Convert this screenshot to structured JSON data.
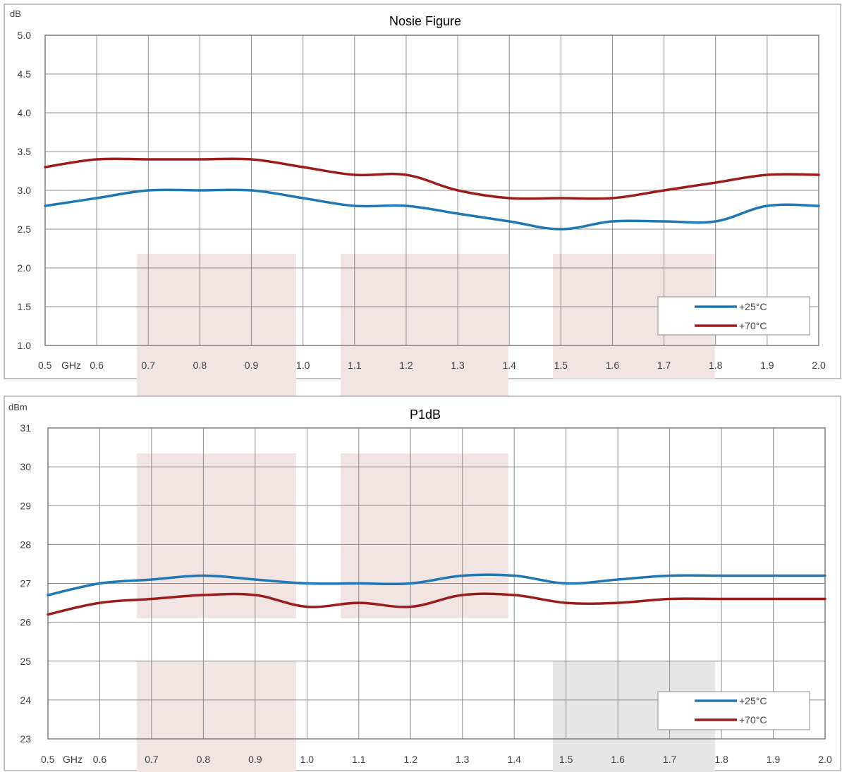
{
  "chart_data": [
    {
      "type": "line",
      "title": "Nosie Figure",
      "unit_label": "dB",
      "x_unit_label": "GHz",
      "x": [
        0.5,
        0.6,
        0.7,
        0.8,
        0.9,
        1.0,
        1.1,
        1.2,
        1.3,
        1.4,
        1.5,
        1.6,
        1.7,
        1.8,
        1.9,
        2.0
      ],
      "x_tick_labels": [
        "0.5",
        "0.6",
        "0.7",
        "0.8",
        "0.9",
        "1.0",
        "1.1",
        "1.2",
        "1.3",
        "1.4",
        "1.5",
        "1.6",
        "1.7",
        "1.8",
        "1.9",
        "2.0"
      ],
      "ylim": [
        1.0,
        5.0
      ],
      "y_ticks": [
        "1.0",
        "1.5",
        "2.0",
        "2.5",
        "3.0",
        "3.5",
        "4.0",
        "4.5",
        "5.0"
      ],
      "y_tick_values": [
        1.0,
        1.5,
        2.0,
        2.5,
        3.0,
        3.5,
        4.0,
        4.5,
        5.0
      ],
      "grid": true,
      "legend_position": "bottom-right",
      "series": [
        {
          "name": "+25°C",
          "color": "#1f77b4",
          "values": [
            2.8,
            2.9,
            3.0,
            3.0,
            3.0,
            2.9,
            2.8,
            2.8,
            2.7,
            2.6,
            2.5,
            2.6,
            2.6,
            2.6,
            2.8,
            2.8
          ]
        },
        {
          "name": "+70°C",
          "color": "#9b1c1c",
          "values": [
            3.3,
            3.4,
            3.4,
            3.4,
            3.4,
            3.3,
            3.2,
            3.2,
            3.0,
            2.9,
            2.9,
            2.9,
            3.0,
            3.1,
            3.2,
            3.2
          ]
        }
      ]
    },
    {
      "type": "line",
      "title": "P1dB",
      "unit_label": "dBm",
      "x_unit_label": "GHz",
      "x": [
        0.5,
        0.6,
        0.7,
        0.8,
        0.9,
        1.0,
        1.1,
        1.2,
        1.3,
        1.4,
        1.5,
        1.6,
        1.7,
        1.8,
        1.9,
        2.0
      ],
      "x_tick_labels": [
        "0.5",
        "0.6",
        "0.7",
        "0.8",
        "0.9",
        "1.0",
        "1.1",
        "1.2",
        "1.3",
        "1.4",
        "1.5",
        "1.6",
        "1.7",
        "1.8",
        "1.9",
        "2.0"
      ],
      "ylim": [
        23,
        31
      ],
      "y_ticks": [
        "23",
        "24",
        "25",
        "26",
        "27",
        "28",
        "29",
        "30",
        "31"
      ],
      "y_tick_values": [
        23,
        24,
        25,
        26,
        27,
        28,
        29,
        30,
        31
      ],
      "grid": true,
      "legend_position": "bottom-right",
      "series": [
        {
          "name": "+25°C",
          "color": "#1f77b4",
          "values": [
            26.7,
            27.0,
            27.1,
            27.2,
            27.1,
            27.0,
            27.0,
            27.0,
            27.2,
            27.2,
            27.0,
            27.1,
            27.2,
            27.2,
            27.2,
            27.2
          ]
        },
        {
          "name": "+70°C",
          "color": "#9b1c1c",
          "values": [
            26.2,
            26.5,
            26.6,
            26.7,
            26.7,
            26.4,
            26.5,
            26.4,
            26.7,
            26.7,
            26.5,
            26.5,
            26.6,
            26.6,
            26.6,
            26.6
          ]
        }
      ]
    }
  ],
  "colors": {
    "frame_border": "#9a9a9a",
    "grid": "#8c8c8c",
    "watermark_pink": "#f3e4e4",
    "watermark_gray": "#e6e6e6"
  }
}
